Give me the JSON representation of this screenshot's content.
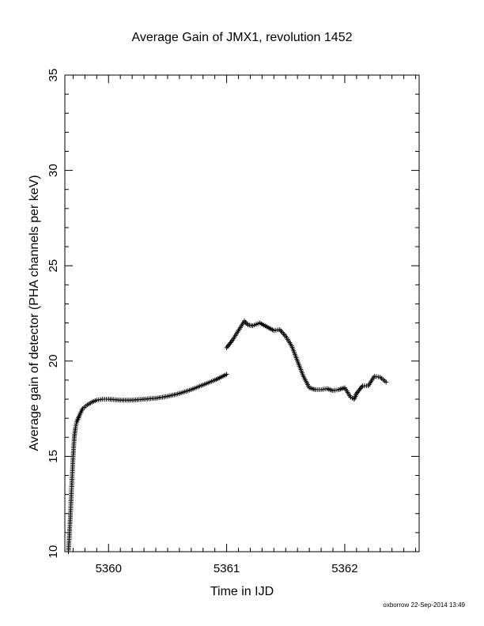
{
  "chart_data": {
    "type": "scatter",
    "title": "Average Gain of JMX1, revolution 1452",
    "xlabel": "Time in IJD",
    "ylabel": "Average gain of detector (PHA channels per keV)",
    "xlim": [
      5359.63,
      5362.63
    ],
    "ylim": [
      10,
      35
    ],
    "xticks": [
      5360,
      5361,
      5362
    ],
    "yticks": [
      10,
      15,
      20,
      25,
      30,
      35
    ],
    "marker": "plus",
    "color": "#000000",
    "grid": false,
    "segments": [
      {
        "x": [
          5359.66,
          5359.67,
          5359.68,
          5359.69,
          5359.7,
          5359.71,
          5359.72,
          5359.73,
          5359.75,
          5359.78,
          5359.82,
          5359.86,
          5359.9,
          5359.95,
          5360.0,
          5360.1,
          5360.2,
          5360.3,
          5360.4,
          5360.5,
          5360.6,
          5360.7,
          5360.8,
          5360.9,
          5361.0
        ],
        "y": [
          10.0,
          11.0,
          12.3,
          13.7,
          15.0,
          16.0,
          16.5,
          16.8,
          17.1,
          17.5,
          17.7,
          17.85,
          17.95,
          18.0,
          18.0,
          17.95,
          17.95,
          18.0,
          18.05,
          18.15,
          18.3,
          18.5,
          18.75,
          19.0,
          19.3
        ]
      },
      {
        "x": [
          5361.0,
          5361.05,
          5361.1,
          5361.15,
          5361.18,
          5361.22,
          5361.28,
          5361.34,
          5361.4,
          5361.45,
          5361.5,
          5361.55,
          5361.6,
          5361.65,
          5361.7,
          5361.75,
          5361.8,
          5361.85,
          5361.9,
          5361.95,
          5362.0,
          5362.05,
          5362.08,
          5362.1,
          5362.15,
          5362.2,
          5362.25,
          5362.3,
          5362.35
        ],
        "y": [
          20.7,
          21.1,
          21.6,
          22.1,
          21.9,
          21.85,
          22.0,
          21.8,
          21.6,
          21.65,
          21.3,
          20.8,
          20.0,
          19.2,
          18.6,
          18.5,
          18.5,
          18.55,
          18.45,
          18.5,
          18.6,
          18.1,
          18.0,
          18.3,
          18.7,
          18.7,
          19.2,
          19.15,
          18.9
        ]
      }
    ]
  },
  "footer": "oxborrow 22-Sep-2014 13:49"
}
